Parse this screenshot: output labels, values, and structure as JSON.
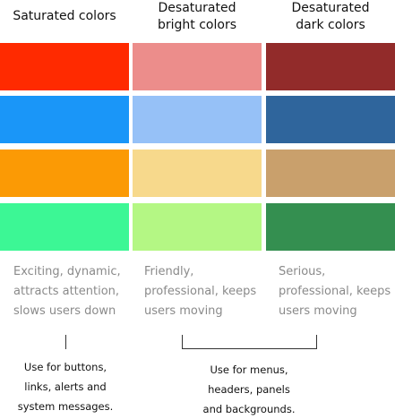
{
  "columns": [
    {
      "title": "Saturated colors",
      "colors": [
        "#ff2a00",
        "#1a96f8",
        "#fb9a05",
        "#3cf795"
      ],
      "description": "Exciting, dynamic,\nattracts attention,\nslows users down"
    },
    {
      "title": "Desaturated\nbright colors",
      "colors": [
        "#ec8d8b",
        "#96c1f7",
        "#f7d98c",
        "#b4f784"
      ],
      "description": "Friendly,\nprofessional, keeps\nusers moving"
    },
    {
      "title": "Desaturated\ndark colors",
      "colors": [
        "#922b2a",
        "#2f659c",
        "#c9a06c",
        "#348f50"
      ],
      "description": "Serious,\nprofessional, keeps\nusers moving"
    }
  ],
  "usage": {
    "saturated": "Use for buttons,\nlinks, alerts and\nsystem messages.",
    "desaturated": "Use for menus,\nheaders, panels\nand backgrounds."
  }
}
